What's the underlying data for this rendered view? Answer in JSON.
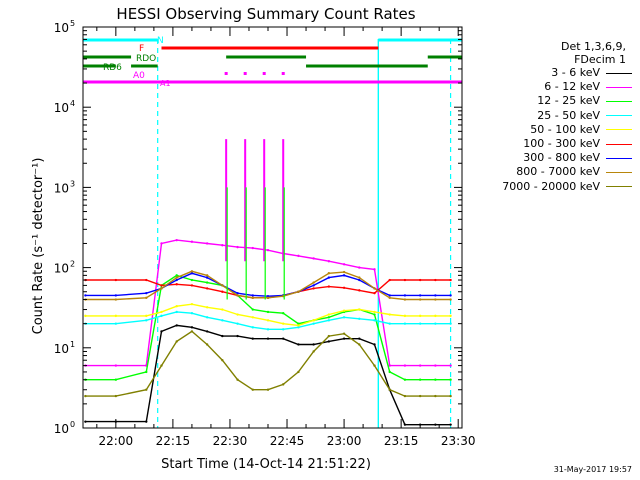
{
  "chart_data": {
    "type": "line",
    "title": "HESSI Observing Summary Count Rates",
    "xlabel": "Start Time (14-Oct-14 21:51:22)",
    "ylabel": "Count Rate (s⁻¹ detector⁻¹)",
    "yscale": "log",
    "xlim": [
      "21:51:22",
      "23:31:00"
    ],
    "ylim": [
      1,
      100000
    ],
    "x_ticks": [
      "22:00",
      "22:15",
      "22:30",
      "22:45",
      "23:00",
      "23:15",
      "23:30"
    ],
    "y_ticks": [
      {
        "value": 1,
        "base": "10",
        "exp": "0"
      },
      {
        "value": 10,
        "base": "10",
        "exp": "1"
      },
      {
        "value": 100,
        "base": "10",
        "exp": "2"
      },
      {
        "value": 1000,
        "base": "10",
        "exp": "3"
      },
      {
        "value": 10000,
        "base": "10",
        "exp": "4"
      },
      {
        "value": 100000,
        "base": "10",
        "exp": "5"
      }
    ],
    "x": [
      "21:52",
      "22:00",
      "22:08",
      "22:12",
      "22:16",
      "22:20",
      "22:24",
      "22:28",
      "22:32",
      "22:36",
      "22:40",
      "22:44",
      "22:48",
      "22:52",
      "22:56",
      "23:00",
      "23:04",
      "23:08",
      "23:12",
      "23:16",
      "23:20",
      "23:24",
      "23:28"
    ],
    "series": [
      {
        "name": "3 - 6 keV",
        "color": "#000000",
        "values": [
          1.2,
          1.2,
          1.2,
          16,
          19,
          18,
          16,
          14,
          14,
          13,
          13,
          13,
          11,
          11,
          12,
          13,
          13,
          11,
          3,
          1.1,
          1.1,
          1.1,
          1.1
        ]
      },
      {
        "name": "6 - 12 keV",
        "color": "#ff00ff",
        "values": [
          6,
          6,
          6,
          200,
          220,
          210,
          200,
          190,
          180,
          175,
          165,
          150,
          140,
          130,
          120,
          110,
          100,
          95,
          6,
          6,
          6,
          6,
          6
        ]
      },
      {
        "name": "12 - 25 keV",
        "color": "#00ff00",
        "values": [
          4,
          4,
          5,
          60,
          80,
          70,
          65,
          60,
          45,
          30,
          28,
          27,
          20,
          22,
          24,
          28,
          30,
          26,
          5,
          4,
          4,
          4,
          4
        ]
      },
      {
        "name": "25 - 50 keV",
        "color": "#00ffff",
        "values": [
          20,
          20,
          22,
          25,
          28,
          27,
          24,
          22,
          20,
          18,
          17,
          17,
          18,
          20,
          22,
          24,
          23,
          22,
          20,
          20,
          20,
          20,
          20
        ]
      },
      {
        "name": "50 - 100 keV",
        "color": "#ffff00",
        "values": [
          25,
          25,
          25,
          28,
          33,
          35,
          32,
          30,
          26,
          24,
          22,
          20,
          19,
          22,
          26,
          29,
          30,
          28,
          26,
          25,
          25,
          25,
          25
        ]
      },
      {
        "name": "100 - 300 keV",
        "color": "#ff0000",
        "values": [
          70,
          70,
          70,
          60,
          62,
          60,
          55,
          50,
          45,
          42,
          42,
          45,
          50,
          55,
          58,
          56,
          52,
          48,
          70,
          70,
          70,
          70,
          70
        ]
      },
      {
        "name": "300 - 800 keV",
        "color": "#0000ff",
        "values": [
          45,
          45,
          48,
          55,
          70,
          85,
          75,
          60,
          48,
          45,
          44,
          45,
          50,
          60,
          75,
          80,
          70,
          55,
          45,
          45,
          45,
          45,
          45
        ]
      },
      {
        "name": "800 - 7000 keV",
        "color": "#b8860b",
        "values": [
          40,
          40,
          42,
          55,
          75,
          90,
          80,
          60,
          45,
          42,
          42,
          44,
          50,
          65,
          85,
          88,
          75,
          55,
          42,
          40,
          40,
          40,
          40
        ]
      },
      {
        "name": "7000 - 20000 keV",
        "color": "#808000",
        "values": [
          2.5,
          2.5,
          3,
          6,
          12,
          16,
          11,
          7,
          4,
          3,
          3,
          3.5,
          5,
          9,
          14,
          15,
          11,
          6,
          3,
          2.5,
          2.5,
          2.5,
          2.5
        ]
      }
    ],
    "spikes": [
      {
        "time": "22:29",
        "value": 4000
      },
      {
        "time": "22:34",
        "value": 4000
      },
      {
        "time": "22:39",
        "value": 4000
      },
      {
        "time": "22:44",
        "value": 4000
      }
    ],
    "flag_bars": [
      {
        "label": "N",
        "color": "#00ffff",
        "segments": [
          [
            "21:51:22",
            "22:11"
          ],
          [
            "23:09",
            "23:31"
          ]
        ]
      },
      {
        "label": "F",
        "color": "#ff0000",
        "segments": [
          [
            "22:12",
            "23:09"
          ]
        ]
      },
      {
        "label": "RDO",
        "color": "#008000",
        "segments": [
          [
            "21:51:22",
            "22:04"
          ],
          [
            "22:29",
            "22:50"
          ],
          [
            "23:22",
            "23:31"
          ]
        ]
      },
      {
        "label": "RD6",
        "color": "#008000",
        "segments": [
          [
            "21:51:22",
            "22:00"
          ],
          [
            "22:04",
            "22:11"
          ],
          [
            "22:50",
            "23:22"
          ]
        ]
      },
      {
        "label": "A0",
        "color": "#ff00ff",
        "segments": [
          [
            "21:51:22",
            "23:31"
          ]
        ]
      }
    ],
    "flag_extras": {
      "a1_label": "A1",
      "markers_color": "#ff00ff",
      "marker_times": [
        "22:29",
        "22:34",
        "22:39",
        "22:44"
      ]
    },
    "dashed_verticals": [
      {
        "time": "22:11",
        "color": "#00ffff"
      },
      {
        "time": "23:28",
        "color": "#00ffff"
      }
    ],
    "solid_verticals": [
      {
        "time": "23:09",
        "color": "#00ffff"
      }
    ],
    "legend": {
      "header": [
        "Det 1,3,6,9,",
        "FDecim 1"
      ],
      "placement": "right"
    }
  },
  "footer_stamp": "31-May-2017 19:57"
}
